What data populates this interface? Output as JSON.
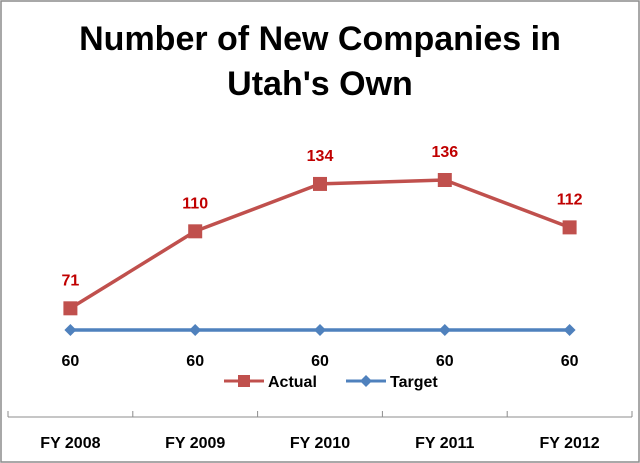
{
  "chart_data": {
    "type": "line",
    "title_line1": "Number of New Companies in",
    "title_line2": "Utah's Own",
    "categories": [
      "FY 2008",
      "FY 2009",
      "FY 2010",
      "FY 2011",
      "FY 2012"
    ],
    "series": [
      {
        "name": "Actual",
        "values": [
          71,
          110,
          134,
          136,
          112
        ],
        "color": "#c0504d",
        "label_color": "#c00000",
        "marker": "square"
      },
      {
        "name": "Target",
        "values": [
          60,
          60,
          60,
          60,
          60
        ],
        "color": "#4f81bd",
        "label_color": "#000000",
        "marker": "diamond"
      }
    ],
    "legend_position": "bottom",
    "grid": false,
    "ylim": [
      20,
      175
    ]
  }
}
